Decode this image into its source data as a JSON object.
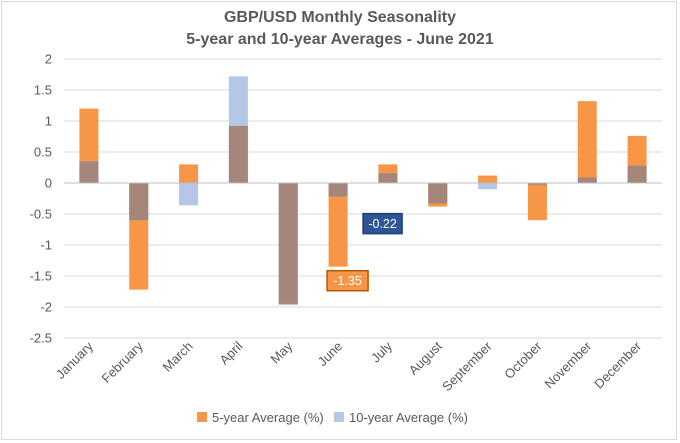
{
  "chart_data": {
    "type": "bar",
    "title": "GBP/USD Monthly Seasonality",
    "subtitle": "5-year and 10-year Averages - June 2021",
    "categories": [
      "January",
      "February",
      "March",
      "April",
      "May",
      "June",
      "July",
      "August",
      "September",
      "October",
      "November",
      "December"
    ],
    "series": [
      {
        "name": "5-year Average (%)",
        "color": "#f79646",
        "values": [
          1.2,
          -1.72,
          0.3,
          0.92,
          -1.95,
          -1.35,
          0.3,
          -0.38,
          0.12,
          -0.6,
          1.32,
          0.76
        ]
      },
      {
        "name": "10-year Average (%)",
        "color": "#b4c7e7",
        "values": [
          0.35,
          -0.6,
          -0.36,
          1.72,
          -1.97,
          -0.22,
          0.16,
          -0.33,
          -0.1,
          -0.03,
          0.09,
          0.28
        ]
      }
    ],
    "overlap_color": "#a6867a",
    "ylim": [
      -2.5,
      2
    ],
    "yticks": [
      "2",
      "1.5",
      "1",
      "0.5",
      "0",
      "-0.5",
      "-1",
      "-1.5",
      "-2",
      "-2.5"
    ],
    "ytick_values": [
      2,
      1.5,
      1,
      0.5,
      0,
      -0.5,
      -1,
      -1.5,
      -2,
      -2.5
    ],
    "gridlines": true,
    "legend_position": "bottom",
    "annotations": [
      {
        "text": "-0.22",
        "category": "June",
        "series": "10-year Average (%)",
        "color": "#2e5597"
      },
      {
        "text": "-1.35",
        "category": "June",
        "series": "5-year Average (%)",
        "color": "#f79646"
      }
    ]
  }
}
